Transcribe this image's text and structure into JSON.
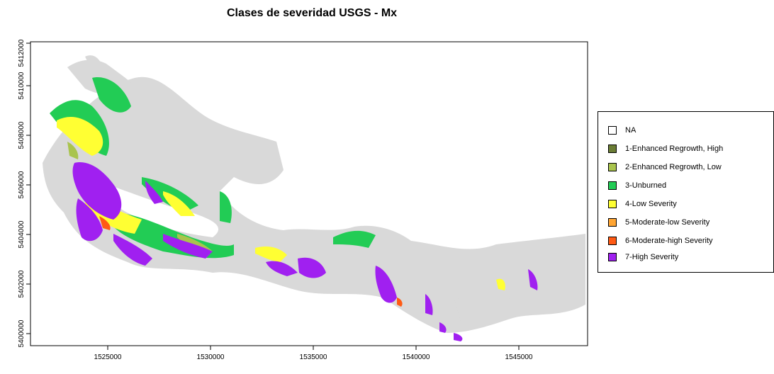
{
  "title": "Clases de severidad USGS - Mx",
  "axes": {
    "x_ticks": [
      "1525000",
      "1530000",
      "1535000",
      "1540000",
      "1545000"
    ],
    "y_ticks": [
      "5400000",
      "5402000",
      "5404000",
      "5406000",
      "5408000",
      "5410000",
      "5412000"
    ],
    "x_range": [
      1521200,
      1548600
    ],
    "y_range": [
      5399500,
      5412450
    ]
  },
  "legend": {
    "items": [
      {
        "label": "NA",
        "color": "#ffffff"
      },
      {
        "label": "1-Enhanced Regrowth, High",
        "color": "#6b7d35"
      },
      {
        "label": "2-Enhanced Regrowth, Low",
        "color": "#a9c44d"
      },
      {
        "label": "3-Unburned",
        "color": "#22cc55"
      },
      {
        "label": "4-Low Severity",
        "color": "#ffff33"
      },
      {
        "label": "5-Moderate-low Severity",
        "color": "#ffa533"
      },
      {
        "label": "6-Moderate-high Severity",
        "color": "#ff5a14"
      },
      {
        "label": "7-High Severity",
        "color": "#a020f0"
      }
    ]
  },
  "colors": {
    "background_area": "#d9d9d9"
  }
}
